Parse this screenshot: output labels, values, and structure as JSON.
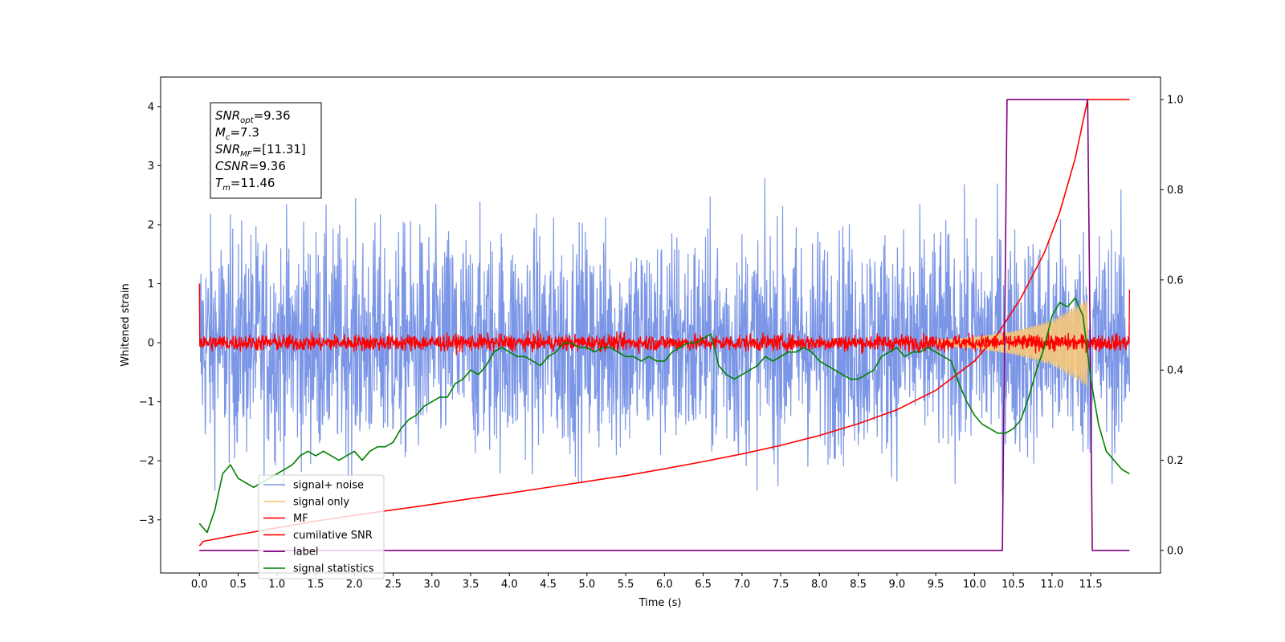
{
  "chart_data": {
    "type": "line",
    "title": "",
    "xlabel": "Time (s)",
    "ylabel": "Whitened strain",
    "y2label": "",
    "xlim": [
      -0.5,
      12.4
    ],
    "ylim": [
      -3.9,
      4.5
    ],
    "y2lim": [
      -0.05,
      1.05
    ],
    "xticks": [
      0.0,
      0.5,
      1.0,
      1.5,
      2.0,
      2.5,
      3.0,
      3.5,
      4.0,
      4.5,
      5.0,
      5.5,
      6.0,
      6.5,
      7.0,
      7.5,
      8.0,
      8.5,
      9.0,
      9.5,
      10.0,
      10.5,
      11.0,
      11.5
    ],
    "xtick_labels": [
      "0.0",
      "0.5",
      "1.0",
      "1.5",
      "2.0",
      "2.5",
      "3.0",
      "3.5",
      "4.0",
      "4.5",
      "5.0",
      "5.5",
      "6.0",
      "6.5",
      "7.0",
      "7.5",
      "8.0",
      "8.5",
      "9.0",
      "9.5",
      "10.0",
      "10.5",
      "11.0",
      "11.5"
    ],
    "yticks": [
      -3,
      -2,
      -1,
      0,
      1,
      2,
      3,
      4
    ],
    "ytick_labels": [
      "−3",
      "−2",
      "−1",
      "0",
      "1",
      "2",
      "3",
      "4"
    ],
    "y2ticks": [
      0.0,
      0.2,
      0.4,
      0.6,
      0.8,
      1.0
    ],
    "y2tick_labels": [
      "0.0",
      "0.2",
      "0.4",
      "0.6",
      "0.8",
      "1.0"
    ],
    "grid": false,
    "legend_position": "lower-left",
    "annotation": {
      "lines": [
        {
          "var": "SNR",
          "sub": "opt",
          "value": "=9.36"
        },
        {
          "var": "M",
          "sub": "c",
          "value": "=7.3"
        },
        {
          "var": "SNR",
          "sub": "MF",
          "value": "=[11.31]"
        },
        {
          "var": "CSNR",
          "sub": "",
          "value": "=9.36"
        },
        {
          "var": "T",
          "sub": "m",
          "value": "=11.46"
        }
      ]
    },
    "series": [
      {
        "name": "signal+ noise",
        "color": "#7b96e6",
        "axis": "left",
        "kind": "noise",
        "x_range": [
          0.0,
          12.0
        ],
        "amplitude": 0.95,
        "envelope": [
          -3.5,
          3.75
        ]
      },
      {
        "name": "signal only",
        "color": "#f5c77a",
        "axis": "left",
        "kind": "chirp",
        "x_range": [
          9.5,
          11.46
        ],
        "envelope_x": [
          9.5,
          10.0,
          10.5,
          11.0,
          11.46
        ],
        "envelope_y": [
          0.05,
          0.1,
          0.2,
          0.38,
          0.75
        ]
      },
      {
        "name": "MF",
        "color": "#ff0000",
        "axis": "left",
        "kind": "mf",
        "x_range": [
          0.0,
          12.0
        ],
        "amplitude": 0.07,
        "start_value": 1.0,
        "end_value": 0.9
      },
      {
        "name": "cumilative SNR",
        "color": "#ff0000",
        "axis": "right",
        "x": [
          0.0,
          0.05,
          0.5,
          1.0,
          1.5,
          2.0,
          2.5,
          3.0,
          3.5,
          4.0,
          4.5,
          5.0,
          5.5,
          6.0,
          6.5,
          7.0,
          7.5,
          8.0,
          8.5,
          9.0,
          9.5,
          10.0,
          10.3,
          10.6,
          10.9,
          11.1,
          11.3,
          11.46,
          12.0
        ],
        "y": [
          0.01,
          0.02,
          0.035,
          0.05,
          0.065,
          0.078,
          0.09,
          0.102,
          0.115,
          0.127,
          0.14,
          0.153,
          0.166,
          0.181,
          0.197,
          0.214,
          0.233,
          0.255,
          0.281,
          0.312,
          0.355,
          0.42,
          0.48,
          0.56,
          0.66,
          0.75,
          0.87,
          1.0,
          1.0
        ]
      },
      {
        "name": "label",
        "color": "#800080",
        "axis": "right",
        "x": [
          0.0,
          10.36,
          10.42,
          11.46,
          11.52,
          12.0
        ],
        "y": [
          0.0,
          0.0,
          1.0,
          1.0,
          0.0,
          0.0
        ]
      },
      {
        "name": "signal statistics",
        "color": "#008000",
        "axis": "right",
        "x": [
          0.0,
          0.1,
          0.2,
          0.3,
          0.4,
          0.5,
          0.6,
          0.7,
          0.8,
          0.9,
          1.0,
          1.1,
          1.2,
          1.3,
          1.4,
          1.5,
          1.6,
          1.7,
          1.8,
          1.9,
          2.0,
          2.1,
          2.2,
          2.3,
          2.4,
          2.5,
          2.6,
          2.7,
          2.8,
          2.9,
          3.0,
          3.1,
          3.2,
          3.3,
          3.4,
          3.5,
          3.6,
          3.7,
          3.8,
          3.9,
          4.0,
          4.1,
          4.2,
          4.3,
          4.4,
          4.5,
          4.6,
          4.7,
          4.8,
          4.9,
          5.0,
          5.1,
          5.2,
          5.3,
          5.4,
          5.5,
          5.6,
          5.7,
          5.8,
          5.9,
          6.0,
          6.1,
          6.2,
          6.3,
          6.4,
          6.5,
          6.6,
          6.7,
          6.8,
          6.9,
          7.0,
          7.1,
          7.2,
          7.3,
          7.4,
          7.5,
          7.6,
          7.7,
          7.8,
          7.9,
          8.0,
          8.1,
          8.2,
          8.3,
          8.4,
          8.5,
          8.6,
          8.7,
          8.8,
          8.9,
          9.0,
          9.1,
          9.2,
          9.3,
          9.4,
          9.5,
          9.6,
          9.7,
          9.8,
          9.9,
          10.0,
          10.1,
          10.2,
          10.3,
          10.4,
          10.5,
          10.6,
          10.7,
          10.8,
          10.9,
          11.0,
          11.1,
          11.2,
          11.3,
          11.4,
          11.5,
          11.6,
          11.7,
          11.8,
          11.9,
          12.0
        ],
        "y": [
          0.06,
          0.04,
          0.09,
          0.17,
          0.19,
          0.16,
          0.15,
          0.14,
          0.15,
          0.16,
          0.17,
          0.18,
          0.19,
          0.21,
          0.22,
          0.21,
          0.22,
          0.21,
          0.2,
          0.21,
          0.22,
          0.2,
          0.22,
          0.23,
          0.23,
          0.24,
          0.27,
          0.29,
          0.3,
          0.32,
          0.33,
          0.34,
          0.34,
          0.37,
          0.38,
          0.4,
          0.39,
          0.41,
          0.44,
          0.45,
          0.44,
          0.43,
          0.43,
          0.42,
          0.41,
          0.43,
          0.44,
          0.46,
          0.46,
          0.45,
          0.45,
          0.44,
          0.45,
          0.45,
          0.44,
          0.43,
          0.43,
          0.42,
          0.43,
          0.42,
          0.42,
          0.44,
          0.45,
          0.46,
          0.46,
          0.47,
          0.48,
          0.41,
          0.39,
          0.38,
          0.39,
          0.4,
          0.41,
          0.43,
          0.42,
          0.43,
          0.44,
          0.44,
          0.45,
          0.44,
          0.42,
          0.41,
          0.4,
          0.39,
          0.38,
          0.38,
          0.39,
          0.4,
          0.43,
          0.44,
          0.45,
          0.43,
          0.44,
          0.44,
          0.45,
          0.44,
          0.43,
          0.42,
          0.37,
          0.33,
          0.3,
          0.28,
          0.27,
          0.26,
          0.26,
          0.27,
          0.29,
          0.34,
          0.4,
          0.45,
          0.52,
          0.55,
          0.54,
          0.56,
          0.52,
          0.38,
          0.28,
          0.22,
          0.2,
          0.18,
          0.17
        ]
      }
    ]
  }
}
